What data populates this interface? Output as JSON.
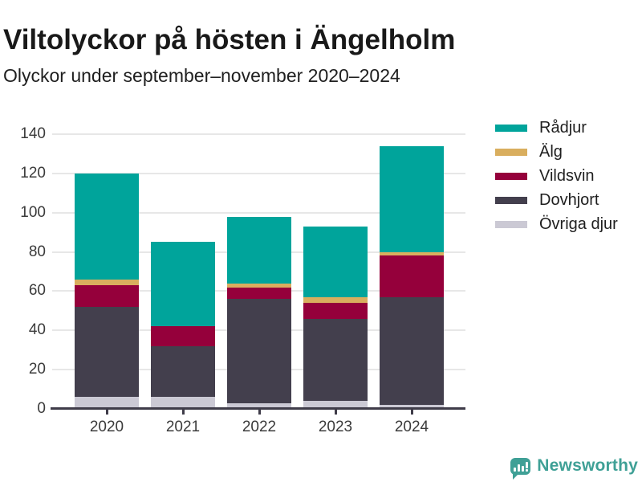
{
  "header": {
    "title": "Viltolyckor på hösten i Ängelholm",
    "subtitle": "Olyckor under september–november 2020–2024"
  },
  "chart_data": {
    "type": "bar",
    "stacked": true,
    "title": "Viltolyckor på hösten i Ängelholm",
    "subtitle": "Olyckor under september–november 2020–2024",
    "categories": [
      "2020",
      "2021",
      "2022",
      "2023",
      "2024"
    ],
    "series": [
      {
        "name": "Rådjur",
        "color": "#00a49b",
        "values": [
          54,
          43,
          34,
          36,
          54
        ]
      },
      {
        "name": "Älg",
        "color": "#d9ae5e",
        "values": [
          3,
          0,
          2,
          3,
          2
        ]
      },
      {
        "name": "Vildsvin",
        "color": "#95003b",
        "values": [
          11,
          10,
          6,
          8,
          21
        ]
      },
      {
        "name": "Dovhjort",
        "color": "#433f4d",
        "values": [
          46,
          26,
          53,
          42,
          55
        ]
      },
      {
        "name": "Övriga djur",
        "color": "#cbc9d4",
        "values": [
          6,
          6,
          3,
          4,
          2
        ]
      }
    ],
    "stack_order_bottom_to_top": [
      "Övriga djur",
      "Dovhjort",
      "Vildsvin",
      "Älg",
      "Rådjur"
    ],
    "totals": [
      120,
      85,
      98,
      93,
      134
    ],
    "xlabel": "",
    "ylabel": "",
    "ylim": [
      0,
      140
    ],
    "yticks": [
      0,
      20,
      40,
      60,
      80,
      100,
      120,
      140
    ],
    "grid": "horizontal",
    "legend_position": "right"
  },
  "colors": {
    "grid": "#e7e7e7",
    "axis": "#3f3c49",
    "tick_text": "#3b3b3b",
    "title_text": "#191919",
    "brand_teal": "#3fa096"
  },
  "footer": {
    "brand": "Newsworthy",
    "brand_icon": "newsworthy-bar-chart-speech-bubble-icon"
  }
}
